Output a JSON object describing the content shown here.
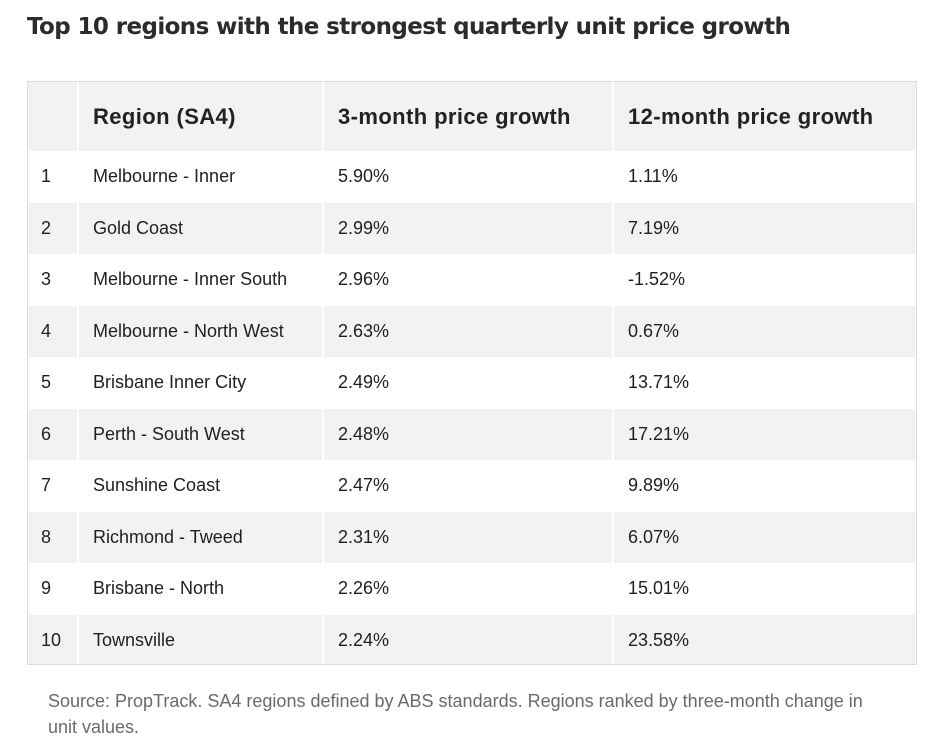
{
  "title": "Top 10 regions with the strongest quarterly unit price growth",
  "table": {
    "headers": [
      "",
      "Region (SA4)",
      "3-month price growth",
      "12-month price growth"
    ],
    "rows": [
      {
        "rank": "1",
        "region": "Melbourne - Inner",
        "three_month": "5.90%",
        "twelve_month": "1.11%"
      },
      {
        "rank": "2",
        "region": "Gold Coast",
        "three_month": "2.99%",
        "twelve_month": "7.19%"
      },
      {
        "rank": "3",
        "region": "Melbourne - Inner South",
        "three_month": "2.96%",
        "twelve_month": "-1.52%"
      },
      {
        "rank": "4",
        "region": "Melbourne - North West",
        "three_month": "2.63%",
        "twelve_month": "0.67%"
      },
      {
        "rank": "5",
        "region": "Brisbane Inner City",
        "three_month": "2.49%",
        "twelve_month": "13.71%"
      },
      {
        "rank": "6",
        "region": "Perth - South West",
        "three_month": "2.48%",
        "twelve_month": "17.21%"
      },
      {
        "rank": "7",
        "region": "Sunshine Coast",
        "three_month": "2.47%",
        "twelve_month": "9.89%"
      },
      {
        "rank": "8",
        "region": "Richmond - Tweed",
        "three_month": "2.31%",
        "twelve_month": "6.07%"
      },
      {
        "rank": "9",
        "region": "Brisbane - North",
        "three_month": "2.26%",
        "twelve_month": "15.01%"
      },
      {
        "rank": "10",
        "region": "Townsville",
        "three_month": "2.24%",
        "twelve_month": "23.58%"
      }
    ]
  },
  "source": "Source: PropTrack. SA4 regions defined by ABS standards. Regions ranked by three-month change in unit values.",
  "colors": {
    "stripe": "#f2f2f2",
    "border": "#dcdcdc",
    "source_text": "#6a6a6a"
  }
}
